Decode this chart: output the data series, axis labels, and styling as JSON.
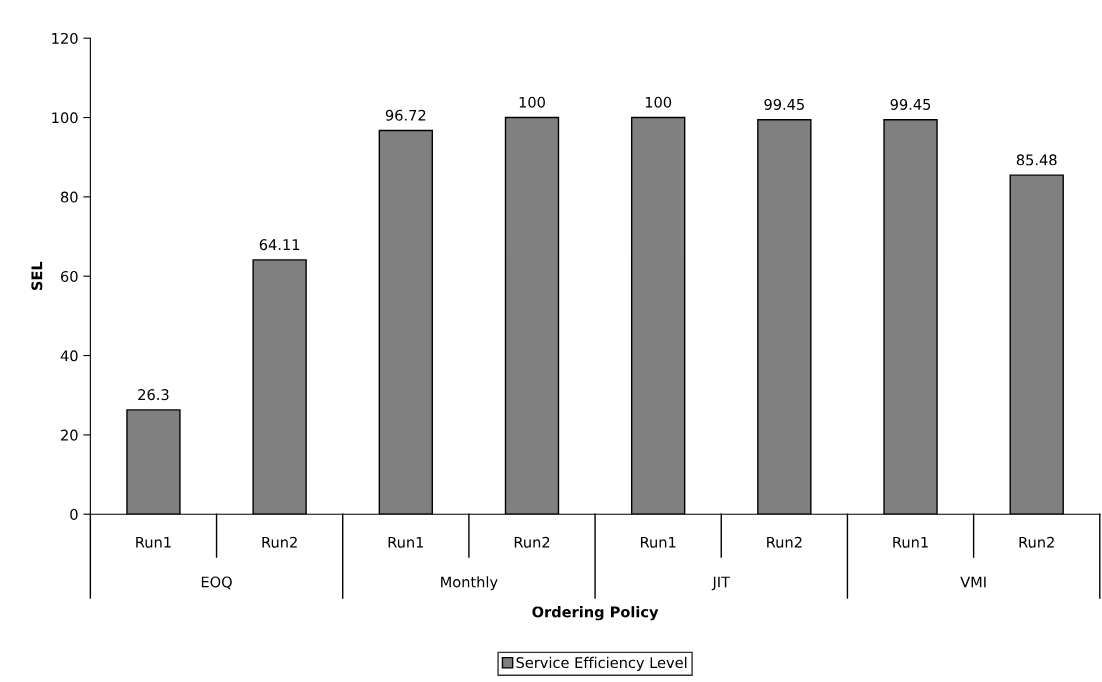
{
  "chart_data": {
    "type": "bar",
    "xlabel": "Ordering Policy",
    "ylabel": "SEL",
    "categories": [
      "Run1",
      "Run2",
      "Run1",
      "Run2",
      "Run1",
      "Run2",
      "Run1",
      "Run2"
    ],
    "annotations": [
      "EOQ",
      "Monthly",
      "JIT",
      "VMI"
    ],
    "series": [
      {
        "name": "Service Efficiency Level",
        "color": "#808080",
        "values": [
          26.3,
          64.11,
          96.72,
          100,
          100,
          99.45,
          99.45,
          85.48
        ]
      }
    ],
    "data_labels": true,
    "ylim": [
      0,
      120
    ],
    "yticks": [
      0,
      20,
      40,
      60,
      80,
      100,
      120
    ],
    "grid": false,
    "legend": "bottom"
  }
}
